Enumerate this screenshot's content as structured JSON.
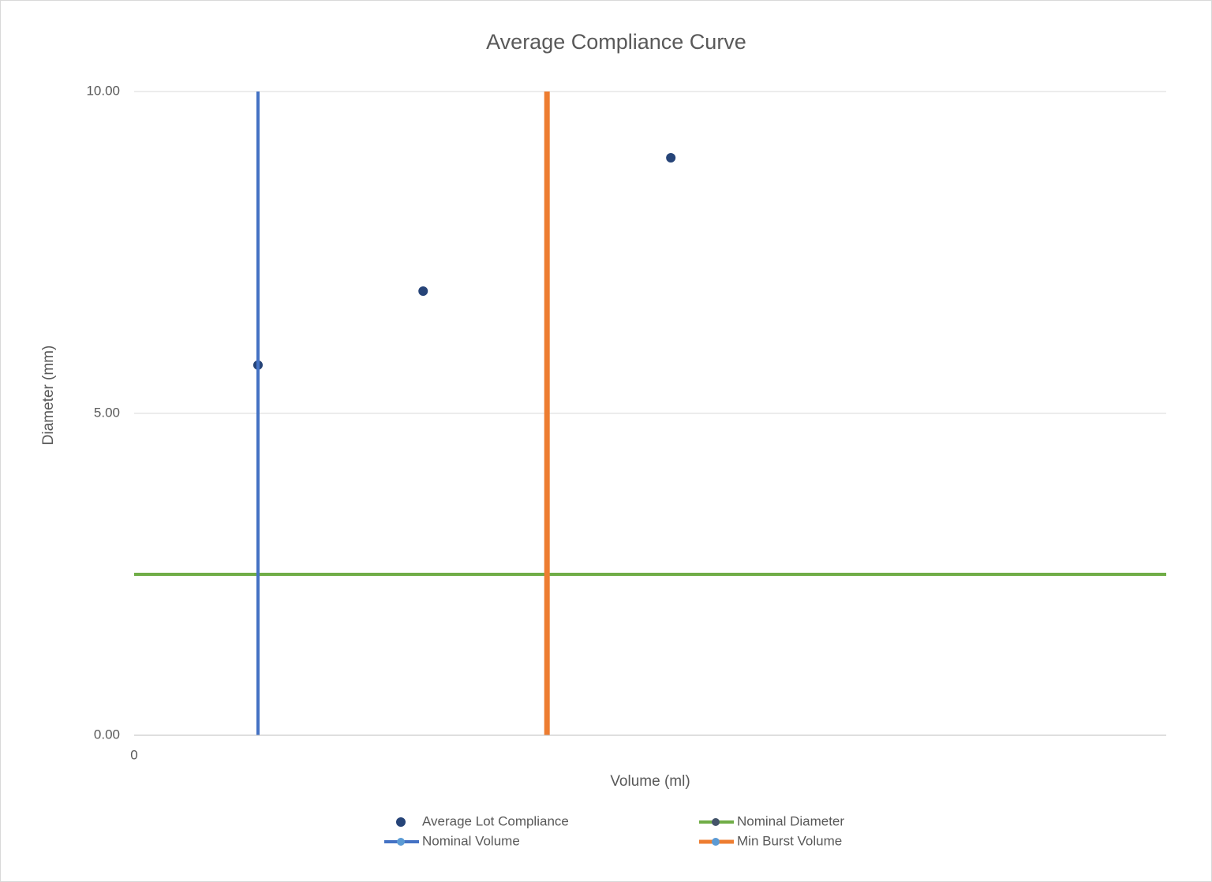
{
  "chart_data": {
    "type": "scatter",
    "title": "Average Compliance Curve",
    "x_label": "Volume (ml)",
    "y_label": "Diameter (mm)",
    "xlim": [
      0,
      25
    ],
    "xticks": [
      0
    ],
    "ylim": [
      0,
      10
    ],
    "yticks": [
      {
        "value": 0,
        "label": "0.00"
      },
      {
        "value": 5,
        "label": "5.00"
      },
      {
        "value": 10,
        "label": "10.00"
      }
    ],
    "grid": true,
    "legend": "bottom",
    "series": [
      {
        "name": "Average Lot Compliance",
        "kind": "markers",
        "color": "#264478",
        "x": [
          3,
          7,
          13
        ],
        "values": [
          5.75,
          6.9,
          8.97
        ]
      },
      {
        "name": "Nominal Diameter",
        "kind": "line",
        "color": "#70ad47",
        "marker_color": "#44546a",
        "x": [
          0,
          25
        ],
        "values": [
          2.5,
          2.5
        ]
      },
      {
        "name": "Nominal Volume",
        "kind": "line",
        "color": "#4472c4",
        "marker_color": "#5b9bd5",
        "x": [
          3,
          3
        ],
        "values": [
          0,
          10
        ]
      },
      {
        "name": "Min Burst Volume",
        "kind": "line",
        "color": "#ed7d31",
        "marker_color": "#5b9bd5",
        "x": [
          10,
          10
        ],
        "values": [
          0,
          10
        ]
      }
    ]
  }
}
